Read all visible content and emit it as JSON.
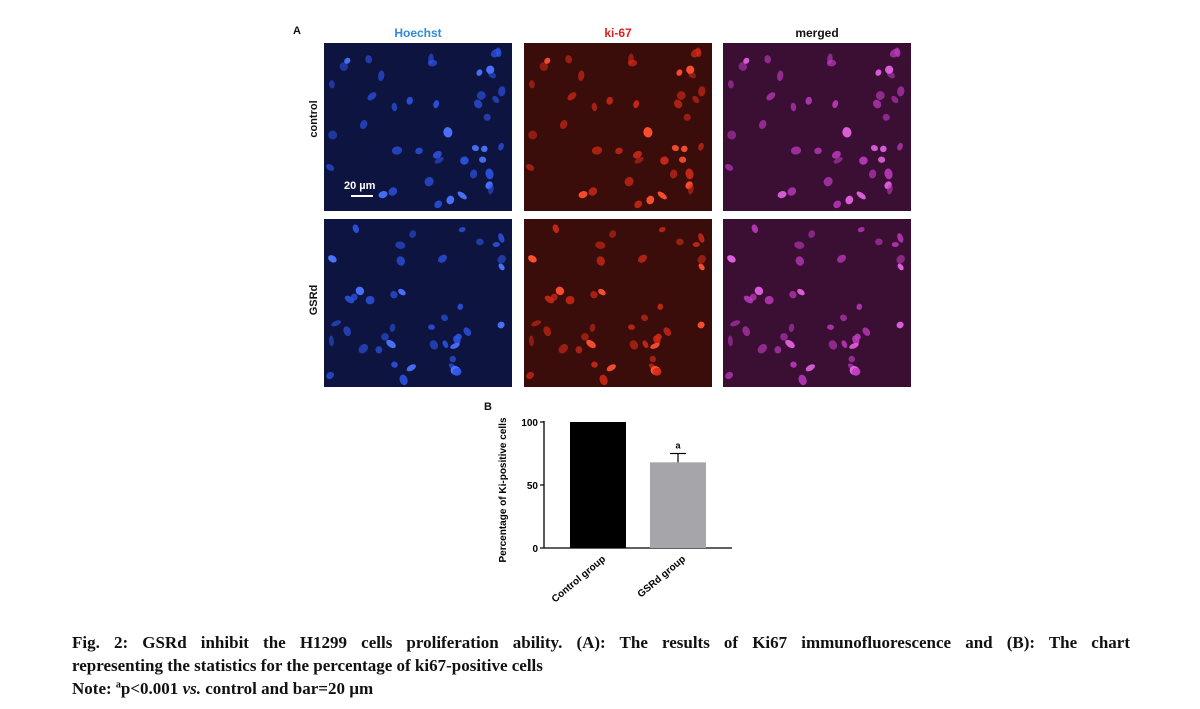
{
  "figure": {
    "panel_a_label": "A",
    "panel_b_label": "B",
    "columns": [
      {
        "label": "Hoechst",
        "color": "#2f8ad8"
      },
      {
        "label": "ki-67",
        "color": "#e02020"
      },
      {
        "label": "merged",
        "color": "#111111"
      }
    ],
    "rows": [
      "control",
      "GSRd"
    ],
    "scale_bar_label": "20 µm"
  },
  "chart_data": {
    "type": "bar",
    "categories": [
      "Control group",
      "GSRd group"
    ],
    "values": [
      100,
      68
    ],
    "error": [
      0,
      7
    ],
    "bar_colors": [
      "#000000",
      "#a6a6aa"
    ],
    "annotations": [
      {
        "category": "GSRd group",
        "text": "a"
      }
    ],
    "ylabel": "Percentage of Ki-positive cells",
    "ylim": [
      0,
      100
    ],
    "yticks": [
      0,
      50,
      100
    ],
    "grid": false,
    "legend": "none"
  },
  "caption": {
    "line1": "Fig. 2: GSRd inhibit the H1299 cells proliferation ability. (A): The results of Ki67 immunofluorescence and (B): The chart",
    "line2": "representing the statistics for the percentage of ki67-positive cells",
    "note_prefix": "Note: ",
    "note_sup": "a",
    "note_text": "p<0.001 ",
    "note_vs": "vs.",
    "note_rest": " control and bar=20 µm"
  }
}
